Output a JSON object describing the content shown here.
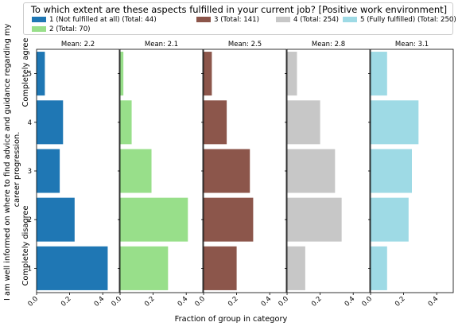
{
  "legend": {
    "title": "To which extent are these aspects fulfilled in your current job? [Positive work environment]",
    "items": [
      {
        "label": "1 (Not fulfilled at all) (Total: 44)",
        "color": "#1f77b4"
      },
      {
        "label": "2 (Total: 70)",
        "color": "#98df8a"
      },
      {
        "label": "3 (Total: 141)",
        "color": "#8c564b"
      },
      {
        "label": "4 (Total: 254)",
        "color": "#c7c7c7"
      },
      {
        "label": "5 (Fully fulfilled) (Total: 250)",
        "color": "#9edae5"
      }
    ]
  },
  "axes": {
    "ylabel_main": "I am well informed on where to find advice and guidance regarding my",
    "ylabel_main2": "career progression.",
    "y_top_label": "Completely agree",
    "y_bottom_label": "Completely disagree",
    "xlabel": "Fraction of group in category"
  },
  "chart_data": {
    "type": "bar",
    "orientation": "horizontal",
    "categories": [
      "1",
      "2",
      "3",
      "4",
      "5"
    ],
    "xlim": [
      0,
      0.5
    ],
    "x_ticks": [
      "0.0",
      "0.2",
      "0.4"
    ],
    "panels": [
      {
        "name": "1 (Not fulfilled at all) (Total: 44)",
        "mean_label": "Mean: 2.2",
        "color": "#1f77b4",
        "values": [
          0.43,
          0.23,
          0.14,
          0.16,
          0.05
        ]
      },
      {
        "name": "2 (Total: 70)",
        "mean_label": "Mean: 2.1",
        "color": "#98df8a",
        "values": [
          0.29,
          0.41,
          0.19,
          0.07,
          0.02
        ]
      },
      {
        "name": "3 (Total: 141)",
        "mean_label": "Mean: 2.5",
        "color": "#8c564b",
        "values": [
          0.2,
          0.3,
          0.28,
          0.14,
          0.05
        ]
      },
      {
        "name": "4 (Total: 254)",
        "mean_label": "Mean: 2.8",
        "color": "#c7c7c7",
        "values": [
          0.11,
          0.33,
          0.29,
          0.2,
          0.06
        ]
      },
      {
        "name": "5 (Fully fulfilled) (Total: 250)",
        "mean_label": "Mean: 3.1",
        "color": "#9edae5",
        "values": [
          0.1,
          0.23,
          0.25,
          0.29,
          0.1
        ]
      }
    ]
  }
}
